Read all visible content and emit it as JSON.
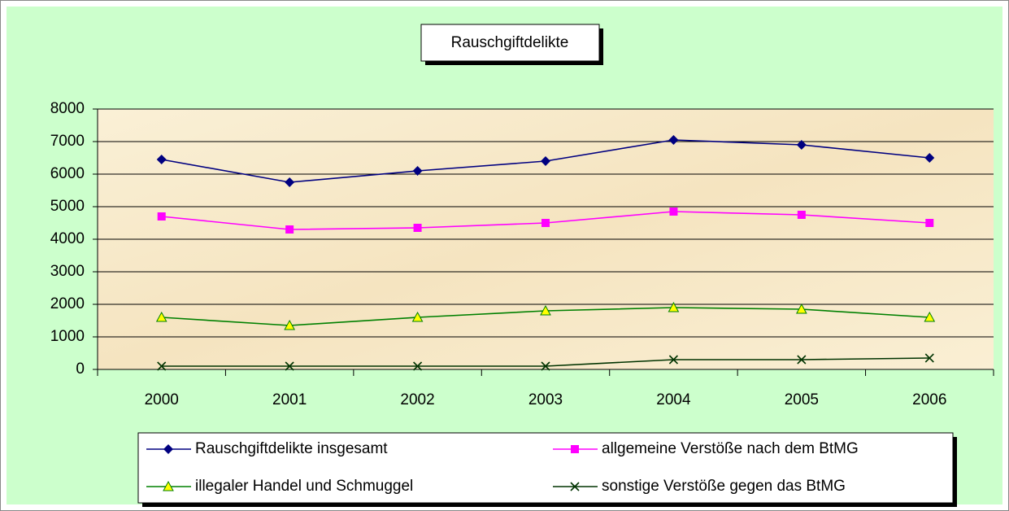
{
  "chart_data": {
    "type": "line",
    "title": "Rauschgiftdelikte",
    "categories": [
      "2000",
      "2001",
      "2002",
      "2003",
      "2004",
      "2005",
      "2006"
    ],
    "series": [
      {
        "name": "Rauschgiftdelikte insgesamt",
        "color": "#000080",
        "marker": "diamond",
        "marker_fill": "#000080",
        "values": [
          6450,
          5750,
          6100,
          6400,
          7050,
          6900,
          6500
        ]
      },
      {
        "name": "allgemeine Verstöße nach dem BtMG",
        "color": "#ff00ff",
        "marker": "square",
        "marker_fill": "#ff00ff",
        "values": [
          4700,
          4300,
          4350,
          4500,
          4850,
          4750,
          4500
        ]
      },
      {
        "name": "illegaler Handel und Schmuggel",
        "color": "#008000",
        "marker": "triangle",
        "marker_fill": "#ffff00",
        "values": [
          1600,
          1350,
          1600,
          1800,
          1900,
          1850,
          1600
        ]
      },
      {
        "name": "sonstige Verstöße gegen das BtMG",
        "color": "#003300",
        "marker": "x",
        "marker_fill": "#003300",
        "values": [
          100,
          100,
          100,
          100,
          300,
          300,
          350
        ]
      }
    ],
    "ylim": [
      0,
      8000
    ],
    "yticks": [
      0,
      1000,
      2000,
      3000,
      4000,
      5000,
      6000,
      7000,
      8000
    ],
    "grid": true,
    "legend": "bottom"
  }
}
